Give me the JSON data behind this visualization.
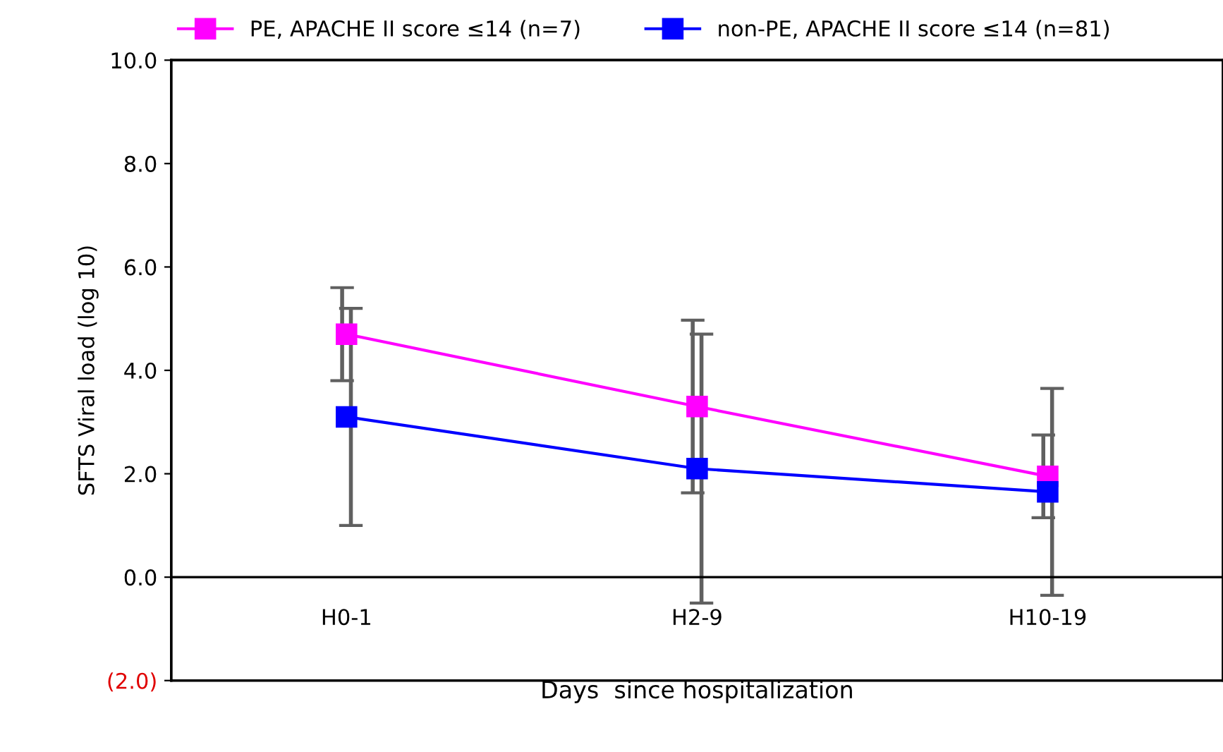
{
  "chart_data": {
    "type": "line",
    "xlabel": "Days  since hospitalization",
    "ylabel": "SFTS Viral load (log 10)",
    "categories": [
      "H0-1",
      "H2-9",
      "H10-19"
    ],
    "series": [
      {
        "name": "PE, APACHE II score ≤14 (n=7)",
        "color": "#ff00ff",
        "values": [
          4.7,
          3.3,
          1.95
        ],
        "errors": [
          0.9,
          1.67,
          0.8
        ]
      },
      {
        "name": "non-PE, APACHE II score ≤14 (n=81)",
        "color": "#0000ff",
        "values": [
          3.1,
          2.1,
          1.65
        ],
        "errors": [
          2.1,
          2.6,
          2.0
        ]
      }
    ],
    "ylim": [
      -2,
      10
    ],
    "yticks": [
      {
        "value": -2,
        "label": "(2.0)"
      },
      {
        "value": 0,
        "label": "0.0"
      },
      {
        "value": 2,
        "label": "2.0"
      },
      {
        "value": 4,
        "label": "4.0"
      },
      {
        "value": 6,
        "label": "6.0"
      },
      {
        "value": 8,
        "label": "8.0"
      },
      {
        "value": 10,
        "label": "10.0"
      }
    ],
    "marker": "square",
    "line_style": "solid",
    "legend": "top",
    "grid": false
  }
}
